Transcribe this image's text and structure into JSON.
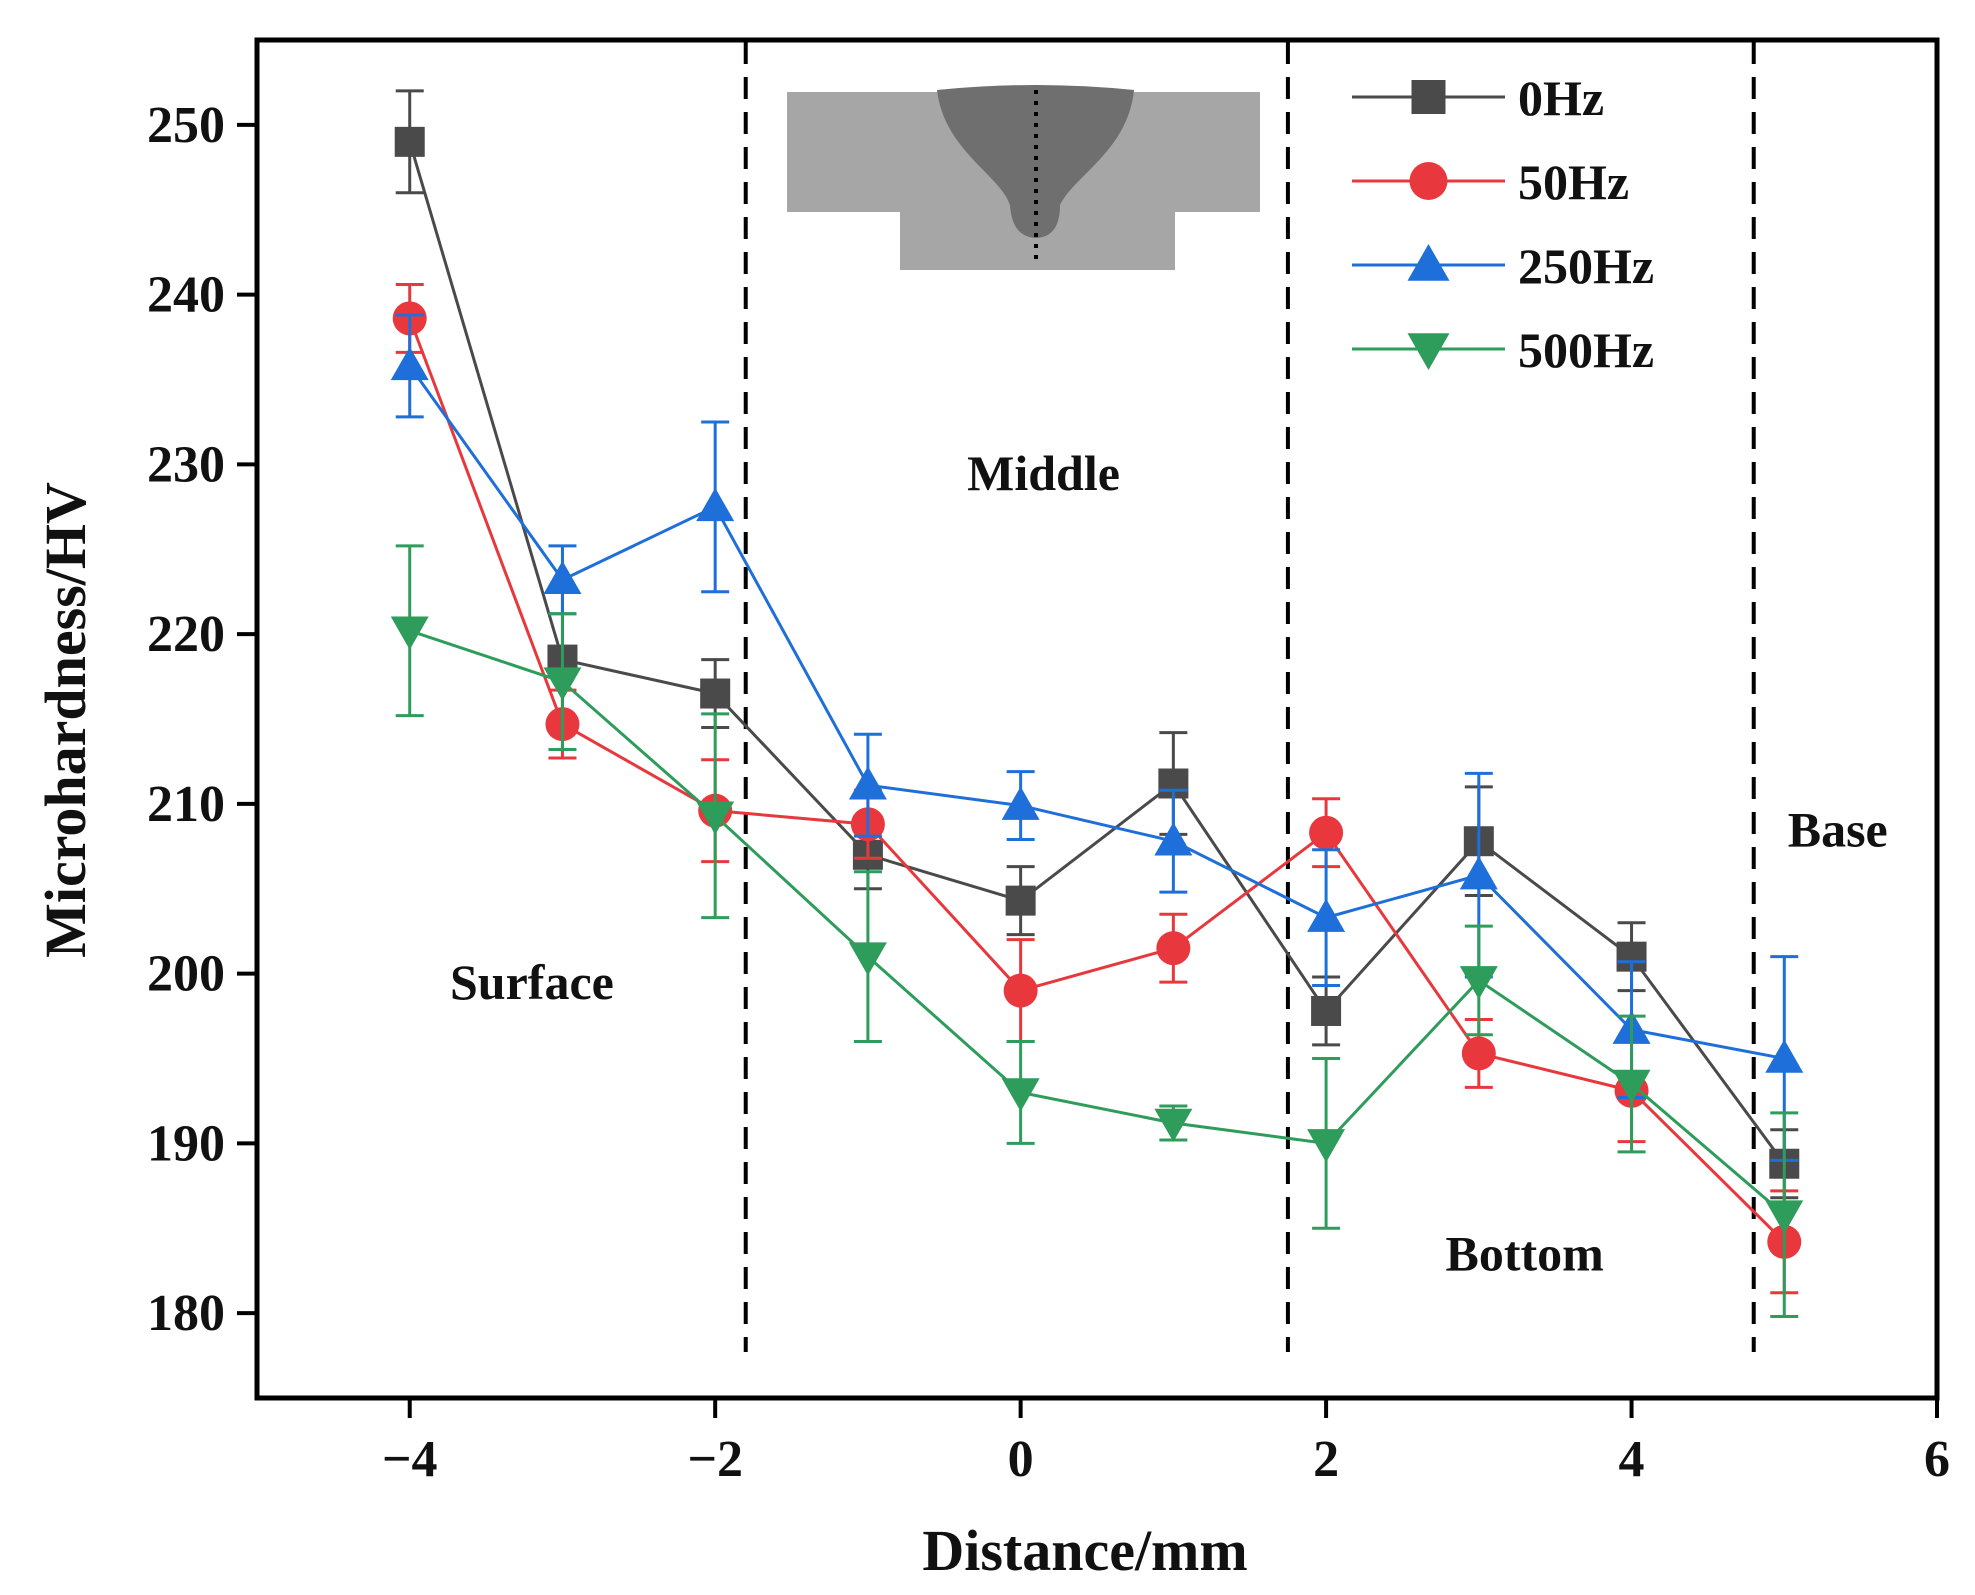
{
  "chart_data": {
    "type": "line",
    "xlabel": "Distance/mm",
    "ylabel": "Microhardness/HV",
    "xlim": [
      -5,
      6
    ],
    "ylim": [
      175,
      255
    ],
    "xticks": [
      -4,
      -2,
      0,
      2,
      4,
      6
    ],
    "xtick_labels": [
      "−4",
      "−2",
      "0",
      "2",
      "4",
      "6"
    ],
    "yticks": [
      180,
      190,
      200,
      210,
      220,
      230,
      240,
      250
    ],
    "ytick_labels": [
      "180",
      "190",
      "200",
      "210",
      "220",
      "230",
      "240",
      "250"
    ],
    "x": [
      -4,
      -3,
      -2,
      -1,
      0,
      1,
      2,
      3,
      4,
      5
    ],
    "series": [
      {
        "name": "0Hz",
        "color": "#4a4a4a",
        "marker": "square",
        "values": [
          249,
          218.5,
          216.5,
          207,
          204.3,
          211.2,
          197.8,
          207.8,
          201,
          188.8
        ],
        "errors": [
          3,
          4,
          2,
          2,
          2,
          3,
          2,
          3.2,
          2,
          2
        ]
      },
      {
        "name": "50Hz",
        "color": "#e8383d",
        "marker": "circle",
        "values": [
          238.6,
          214.7,
          209.6,
          208.8,
          199,
          201.5,
          208.3,
          195.3,
          193.1,
          184.2
        ],
        "errors": [
          2,
          2,
          3,
          2,
          3,
          2,
          2,
          2,
          3,
          3
        ]
      },
      {
        "name": "250Hz",
        "color": "#1e6fd9",
        "marker": "triangle-up",
        "values": [
          235.8,
          223.2,
          227.5,
          211.1,
          209.9,
          207.8,
          203.3,
          205.8,
          196.7,
          195
        ],
        "errors": [
          3,
          2,
          5,
          3,
          2,
          3,
          4,
          6,
          4,
          6
        ]
      },
      {
        "name": "500Hz",
        "color": "#2e9c5a",
        "marker": "triangle-down",
        "values": [
          220.2,
          217.2,
          209.3,
          201,
          193,
          191.2,
          190,
          199.6,
          193.5,
          185.8
        ],
        "errors": [
          5,
          4,
          6,
          5,
          3,
          1,
          5,
          3.2,
          4,
          6
        ]
      }
    ],
    "region_boundaries": [
      -1.8,
      1.75,
      4.8
    ],
    "regions": [
      {
        "name": "Surface",
        "x": -3.2,
        "y": 198.5
      },
      {
        "name": "Middle",
        "x": 0.15,
        "y": 228.5
      },
      {
        "name": "Bottom",
        "x": 3.3,
        "y": 182.5
      },
      {
        "name": "Base",
        "x": 5.35,
        "y": 207.5
      }
    ],
    "legend_position": "top-right"
  }
}
